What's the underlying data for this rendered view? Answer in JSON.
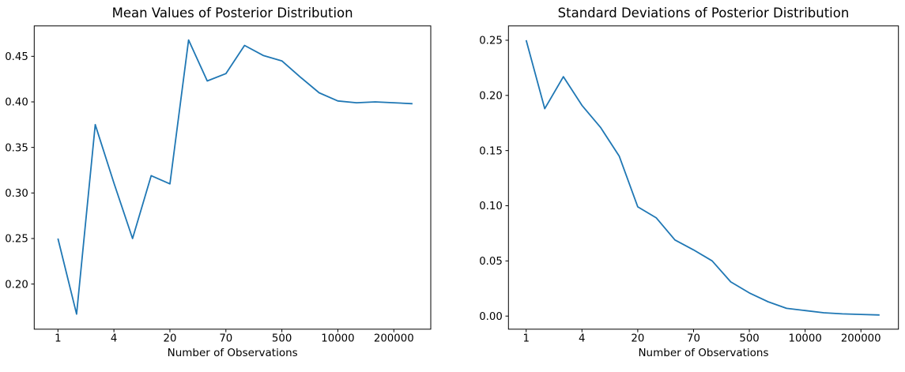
{
  "figure": {
    "kind": "matplotlib-style static figure",
    "background": "#ffffff"
  },
  "colors": {
    "line": "#1f77b4",
    "spine": "#000000",
    "text": "#000000",
    "background": "#ffffff"
  },
  "chart_data": [
    {
      "type": "line",
      "title": "Mean Values of Posterior Distribution",
      "xlabel": "Number of Observations",
      "ylabel": "",
      "grid": false,
      "legend": null,
      "x_scale_note": "20 points evenly spaced; tick labels show observation counts at every 3rd point",
      "n_points": 20,
      "x_tick_labels": [
        "1",
        "4",
        "20",
        "70",
        "500",
        "10000",
        "200000"
      ],
      "x_tick_point_indices": [
        0,
        3,
        6,
        9,
        12,
        15,
        18
      ],
      "y_ticks": [
        0.2,
        0.25,
        0.3,
        0.35,
        0.4,
        0.45
      ],
      "ylim": [
        0.151,
        0.483
      ],
      "values": [
        0.25,
        0.167,
        0.375,
        0.311,
        0.25,
        0.319,
        0.31,
        0.468,
        0.423,
        0.431,
        0.462,
        0.451,
        0.445,
        0.427,
        0.41,
        0.401,
        0.399,
        0.4,
        0.399,
        0.398
      ]
    },
    {
      "type": "line",
      "title": "Standard Deviations of Posterior Distribution",
      "xlabel": "Number of Observations",
      "ylabel": "",
      "grid": false,
      "legend": null,
      "x_scale_note": "20 points evenly spaced; tick labels show observation counts at every 3rd point",
      "n_points": 20,
      "x_tick_labels": [
        "1",
        "4",
        "20",
        "70",
        "500",
        "10000",
        "200000"
      ],
      "x_tick_point_indices": [
        0,
        3,
        6,
        9,
        12,
        15,
        18
      ],
      "y_ticks": [
        0.0,
        0.05,
        0.1,
        0.15,
        0.2,
        0.25
      ],
      "ylim": [
        -0.011,
        0.262
      ],
      "values": [
        0.25,
        0.188,
        0.217,
        0.191,
        0.171,
        0.145,
        0.099,
        0.089,
        0.069,
        0.06,
        0.05,
        0.031,
        0.021,
        0.013,
        0.007,
        0.005,
        0.003,
        0.002,
        0.0015,
        0.001
      ]
    }
  ]
}
